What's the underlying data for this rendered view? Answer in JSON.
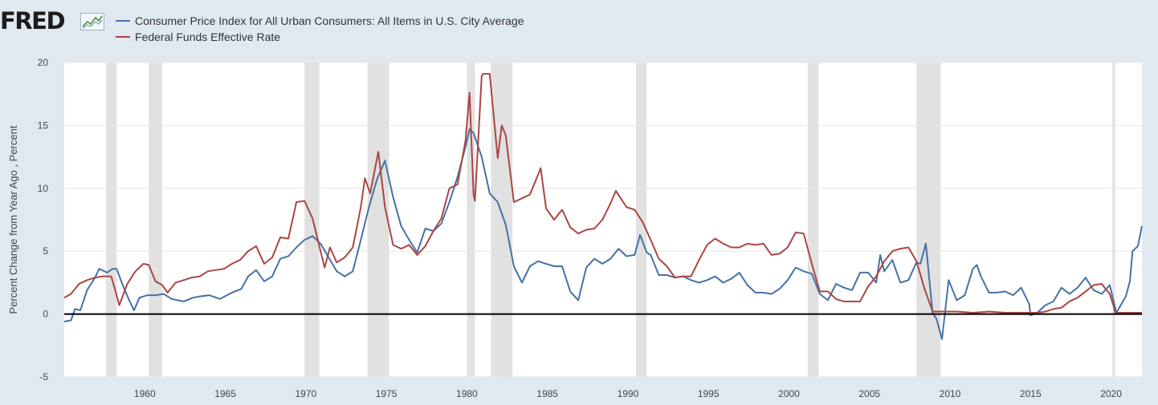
{
  "logo": {
    "text": "FRED",
    "mark_icon": "line-chart-icon"
  },
  "colors": {
    "background": "#e1e9f0",
    "plot_background": "#ffffff",
    "recession": "#e1e1e1",
    "zero_line": "#000000",
    "cpi": "#4572a7",
    "ffr": "#aa4643"
  },
  "chart_data": {
    "type": "line",
    "ylabel": "Percent Change from Year Ago , Percent",
    "ylim": [
      -5,
      20
    ],
    "xlim": [
      "1955-01",
      "2021-12"
    ],
    "y_ticks": [
      -5,
      0,
      5,
      10,
      15,
      20
    ],
    "x_ticks": [
      "1960",
      "1965",
      "1970",
      "1975",
      "1980",
      "1985",
      "1990",
      "1995",
      "2000",
      "2005",
      "2010",
      "2015",
      "2020"
    ],
    "grid": "horizontal",
    "legend_position": "top-left",
    "recessions": [
      [
        "1957-08",
        "1958-04"
      ],
      [
        "1960-04",
        "1961-02"
      ],
      [
        "1969-12",
        "1970-11"
      ],
      [
        "1973-11",
        "1975-03"
      ],
      [
        "1980-01",
        "1980-07"
      ],
      [
        "1981-07",
        "1982-11"
      ],
      [
        "1990-07",
        "1991-03"
      ],
      [
        "2001-03",
        "2001-11"
      ],
      [
        "2007-12",
        "2009-06"
      ],
      [
        "2020-02",
        "2020-04"
      ]
    ],
    "series": [
      {
        "name": "Consumer Price Index for All Urban Consumers: All Items in U.S. City Average",
        "color": "#4572a7",
        "points": [
          [
            "1955-01",
            -0.6
          ],
          [
            "1955-06",
            -0.5
          ],
          [
            "1955-09",
            0.4
          ],
          [
            "1956-01",
            0.3
          ],
          [
            "1956-06",
            1.9
          ],
          [
            "1956-12",
            2.9
          ],
          [
            "1957-03",
            3.6
          ],
          [
            "1957-09",
            3.3
          ],
          [
            "1958-01",
            3.6
          ],
          [
            "1958-04",
            3.6
          ],
          [
            "1958-09",
            2.2
          ],
          [
            "1959-01",
            1.2
          ],
          [
            "1959-05",
            0.3
          ],
          [
            "1959-09",
            1.3
          ],
          [
            "1960-03",
            1.5
          ],
          [
            "1960-09",
            1.5
          ],
          [
            "1961-03",
            1.6
          ],
          [
            "1961-09",
            1.2
          ],
          [
            "1962-06",
            1.0
          ],
          [
            "1963-01",
            1.3
          ],
          [
            "1963-06",
            1.4
          ],
          [
            "1964-01",
            1.5
          ],
          [
            "1964-09",
            1.2
          ],
          [
            "1965-06",
            1.7
          ],
          [
            "1966-01",
            2.0
          ],
          [
            "1966-06",
            3.0
          ],
          [
            "1966-12",
            3.5
          ],
          [
            "1967-06",
            2.6
          ],
          [
            "1967-12",
            3.0
          ],
          [
            "1968-06",
            4.4
          ],
          [
            "1968-12",
            4.6
          ],
          [
            "1969-06",
            5.3
          ],
          [
            "1969-12",
            5.9
          ],
          [
            "1970-06",
            6.2
          ],
          [
            "1970-12",
            5.6
          ],
          [
            "1971-06",
            4.5
          ],
          [
            "1971-12",
            3.4
          ],
          [
            "1972-06",
            3.0
          ],
          [
            "1972-12",
            3.4
          ],
          [
            "1973-06",
            5.9
          ],
          [
            "1973-12",
            8.5
          ],
          [
            "1974-06",
            10.7
          ],
          [
            "1974-12",
            12.2
          ],
          [
            "1975-06",
            9.3
          ],
          [
            "1975-12",
            7.0
          ],
          [
            "1976-06",
            5.9
          ],
          [
            "1976-12",
            4.9
          ],
          [
            "1977-06",
            6.8
          ],
          [
            "1977-12",
            6.6
          ],
          [
            "1978-06",
            7.2
          ],
          [
            "1978-12",
            8.9
          ],
          [
            "1979-06",
            10.9
          ],
          [
            "1979-12",
            13.3
          ],
          [
            "1980-03",
            14.7
          ],
          [
            "1980-06",
            14.4
          ],
          [
            "1980-12",
            12.5
          ],
          [
            "1981-06",
            9.6
          ],
          [
            "1981-12",
            8.9
          ],
          [
            "1982-06",
            7.1
          ],
          [
            "1982-12",
            3.8
          ],
          [
            "1983-06",
            2.5
          ],
          [
            "1983-12",
            3.8
          ],
          [
            "1984-06",
            4.2
          ],
          [
            "1984-12",
            4.0
          ],
          [
            "1985-06",
            3.8
          ],
          [
            "1985-12",
            3.8
          ],
          [
            "1986-06",
            1.8
          ],
          [
            "1986-12",
            1.1
          ],
          [
            "1987-06",
            3.7
          ],
          [
            "1987-12",
            4.4
          ],
          [
            "1988-06",
            4.0
          ],
          [
            "1988-12",
            4.4
          ],
          [
            "1989-06",
            5.2
          ],
          [
            "1989-12",
            4.6
          ],
          [
            "1990-06",
            4.7
          ],
          [
            "1990-10",
            6.3
          ],
          [
            "1991-03",
            4.9
          ],
          [
            "1991-06",
            4.7
          ],
          [
            "1991-12",
            3.1
          ],
          [
            "1992-06",
            3.1
          ],
          [
            "1992-12",
            2.9
          ],
          [
            "1993-06",
            3.0
          ],
          [
            "1993-12",
            2.7
          ],
          [
            "1994-06",
            2.5
          ],
          [
            "1994-12",
            2.7
          ],
          [
            "1995-06",
            3.0
          ],
          [
            "1995-12",
            2.5
          ],
          [
            "1996-06",
            2.8
          ],
          [
            "1996-12",
            3.3
          ],
          [
            "1997-06",
            2.3
          ],
          [
            "1997-12",
            1.7
          ],
          [
            "1998-06",
            1.7
          ],
          [
            "1998-12",
            1.6
          ],
          [
            "1999-06",
            2.0
          ],
          [
            "1999-12",
            2.7
          ],
          [
            "2000-06",
            3.7
          ],
          [
            "2000-12",
            3.4
          ],
          [
            "2001-06",
            3.2
          ],
          [
            "2001-12",
            1.6
          ],
          [
            "2002-06",
            1.1
          ],
          [
            "2002-12",
            2.4
          ],
          [
            "2003-06",
            2.1
          ],
          [
            "2003-12",
            1.9
          ],
          [
            "2004-06",
            3.3
          ],
          [
            "2004-12",
            3.3
          ],
          [
            "2005-06",
            2.5
          ],
          [
            "2005-09",
            4.7
          ],
          [
            "2005-12",
            3.4
          ],
          [
            "2006-06",
            4.3
          ],
          [
            "2006-12",
            2.5
          ],
          [
            "2007-06",
            2.7
          ],
          [
            "2007-12",
            4.1
          ],
          [
            "2008-03",
            4.0
          ],
          [
            "2008-07",
            5.6
          ],
          [
            "2008-12",
            0.1
          ],
          [
            "2009-03",
            -0.4
          ],
          [
            "2009-07",
            -2.0
          ],
          [
            "2009-12",
            2.7
          ],
          [
            "2010-06",
            1.1
          ],
          [
            "2010-12",
            1.5
          ],
          [
            "2011-06",
            3.6
          ],
          [
            "2011-09",
            3.9
          ],
          [
            "2011-12",
            3.0
          ],
          [
            "2012-06",
            1.7
          ],
          [
            "2012-12",
            1.7
          ],
          [
            "2013-06",
            1.8
          ],
          [
            "2013-12",
            1.5
          ],
          [
            "2014-06",
            2.1
          ],
          [
            "2014-12",
            0.8
          ],
          [
            "2015-01",
            -0.1
          ],
          [
            "2015-06",
            0.1
          ],
          [
            "2015-12",
            0.7
          ],
          [
            "2016-06",
            1.0
          ],
          [
            "2016-12",
            2.1
          ],
          [
            "2017-06",
            1.6
          ],
          [
            "2017-12",
            2.1
          ],
          [
            "2018-06",
            2.9
          ],
          [
            "2018-12",
            1.9
          ],
          [
            "2019-06",
            1.6
          ],
          [
            "2019-12",
            2.3
          ],
          [
            "2020-05",
            0.1
          ],
          [
            "2020-12",
            1.4
          ],
          [
            "2021-03",
            2.6
          ],
          [
            "2021-05",
            5.0
          ],
          [
            "2021-09",
            5.4
          ],
          [
            "2021-12",
            7.0
          ]
        ]
      },
      {
        "name": "Federal Funds Effective Rate",
        "color": "#aa4643",
        "points": [
          [
            "1955-01",
            1.3
          ],
          [
            "1955-06",
            1.6
          ],
          [
            "1955-12",
            2.4
          ],
          [
            "1956-06",
            2.7
          ],
          [
            "1956-12",
            2.9
          ],
          [
            "1957-06",
            3.0
          ],
          [
            "1957-12",
            3.0
          ],
          [
            "1958-03",
            1.9
          ],
          [
            "1958-06",
            0.7
          ],
          [
            "1958-12",
            2.4
          ],
          [
            "1959-06",
            3.4
          ],
          [
            "1959-12",
            4.0
          ],
          [
            "1960-04",
            3.9
          ],
          [
            "1960-09",
            2.6
          ],
          [
            "1961-02",
            2.3
          ],
          [
            "1961-06",
            1.7
          ],
          [
            "1961-12",
            2.5
          ],
          [
            "1962-06",
            2.7
          ],
          [
            "1962-12",
            2.9
          ],
          [
            "1963-06",
            3.0
          ],
          [
            "1963-12",
            3.4
          ],
          [
            "1964-06",
            3.5
          ],
          [
            "1964-12",
            3.6
          ],
          [
            "1965-06",
            4.0
          ],
          [
            "1965-12",
            4.3
          ],
          [
            "1966-06",
            5.0
          ],
          [
            "1966-12",
            5.4
          ],
          [
            "1967-06",
            4.0
          ],
          [
            "1967-12",
            4.5
          ],
          [
            "1968-06",
            6.1
          ],
          [
            "1968-12",
            6.0
          ],
          [
            "1969-06",
            8.9
          ],
          [
            "1969-12",
            9.0
          ],
          [
            "1970-06",
            7.6
          ],
          [
            "1970-12",
            5.0
          ],
          [
            "1971-03",
            3.7
          ],
          [
            "1971-07",
            5.3
          ],
          [
            "1971-12",
            4.1
          ],
          [
            "1972-06",
            4.5
          ],
          [
            "1972-12",
            5.3
          ],
          [
            "1973-06",
            8.5
          ],
          [
            "1973-09",
            10.8
          ],
          [
            "1974-01",
            9.6
          ],
          [
            "1974-07",
            12.9
          ],
          [
            "1974-12",
            8.5
          ],
          [
            "1975-06",
            5.5
          ],
          [
            "1975-12",
            5.2
          ],
          [
            "1976-06",
            5.5
          ],
          [
            "1976-12",
            4.7
          ],
          [
            "1977-06",
            5.4
          ],
          [
            "1977-12",
            6.6
          ],
          [
            "1978-06",
            7.6
          ],
          [
            "1978-12",
            10.0
          ],
          [
            "1979-06",
            10.3
          ],
          [
            "1979-12",
            13.8
          ],
          [
            "1980-03",
            17.6
          ],
          [
            "1980-06",
            9.5
          ],
          [
            "1980-07",
            9.0
          ],
          [
            "1980-12",
            18.9
          ],
          [
            "1981-01",
            19.1
          ],
          [
            "1981-06",
            19.1
          ],
          [
            "1981-12",
            12.4
          ],
          [
            "1982-03",
            15.0
          ],
          [
            "1982-06",
            14.2
          ],
          [
            "1982-12",
            8.9
          ],
          [
            "1983-06",
            9.2
          ],
          [
            "1983-12",
            9.5
          ],
          [
            "1984-08",
            11.6
          ],
          [
            "1984-12",
            8.4
          ],
          [
            "1985-06",
            7.5
          ],
          [
            "1985-12",
            8.3
          ],
          [
            "1986-06",
            6.9
          ],
          [
            "1986-12",
            6.4
          ],
          [
            "1987-06",
            6.7
          ],
          [
            "1987-12",
            6.8
          ],
          [
            "1988-06",
            7.5
          ],
          [
            "1988-12",
            8.8
          ],
          [
            "1989-04",
            9.8
          ],
          [
            "1989-12",
            8.5
          ],
          [
            "1990-06",
            8.3
          ],
          [
            "1990-12",
            7.3
          ],
          [
            "1991-06",
            5.9
          ],
          [
            "1991-12",
            4.4
          ],
          [
            "1992-06",
            3.8
          ],
          [
            "1992-12",
            2.9
          ],
          [
            "1993-06",
            3.0
          ],
          [
            "1993-12",
            3.0
          ],
          [
            "1994-06",
            4.3
          ],
          [
            "1994-12",
            5.5
          ],
          [
            "1995-06",
            6.0
          ],
          [
            "1995-12",
            5.6
          ],
          [
            "1996-06",
            5.3
          ],
          [
            "1996-12",
            5.3
          ],
          [
            "1997-06",
            5.6
          ],
          [
            "1997-12",
            5.5
          ],
          [
            "1998-06",
            5.6
          ],
          [
            "1998-12",
            4.7
          ],
          [
            "1999-06",
            4.8
          ],
          [
            "1999-12",
            5.3
          ],
          [
            "2000-06",
            6.5
          ],
          [
            "2000-12",
            6.4
          ],
          [
            "2001-06",
            4.0
          ],
          [
            "2001-12",
            1.8
          ],
          [
            "2002-06",
            1.8
          ],
          [
            "2002-12",
            1.2
          ],
          [
            "2003-06",
            1.0
          ],
          [
            "2003-12",
            1.0
          ],
          [
            "2004-06",
            1.0
          ],
          [
            "2004-12",
            2.2
          ],
          [
            "2005-06",
            3.0
          ],
          [
            "2005-12",
            4.2
          ],
          [
            "2006-06",
            5.0
          ],
          [
            "2006-12",
            5.2
          ],
          [
            "2007-06",
            5.3
          ],
          [
            "2007-12",
            4.2
          ],
          [
            "2008-06",
            2.0
          ],
          [
            "2008-12",
            0.2
          ],
          [
            "2009-06",
            0.2
          ],
          [
            "2010-06",
            0.2
          ],
          [
            "2011-06",
            0.1
          ],
          [
            "2012-06",
            0.2
          ],
          [
            "2013-06",
            0.1
          ],
          [
            "2014-06",
            0.1
          ],
          [
            "2015-06",
            0.1
          ],
          [
            "2015-12",
            0.2
          ],
          [
            "2016-06",
            0.4
          ],
          [
            "2016-12",
            0.5
          ],
          [
            "2017-06",
            1.0
          ],
          [
            "2017-12",
            1.3
          ],
          [
            "2018-06",
            1.8
          ],
          [
            "2018-12",
            2.3
          ],
          [
            "2019-06",
            2.4
          ],
          [
            "2019-12",
            1.6
          ],
          [
            "2020-03",
            0.6
          ],
          [
            "2020-04",
            0.1
          ],
          [
            "2020-12",
            0.1
          ],
          [
            "2021-06",
            0.1
          ],
          [
            "2021-12",
            0.1
          ]
        ]
      }
    ]
  }
}
